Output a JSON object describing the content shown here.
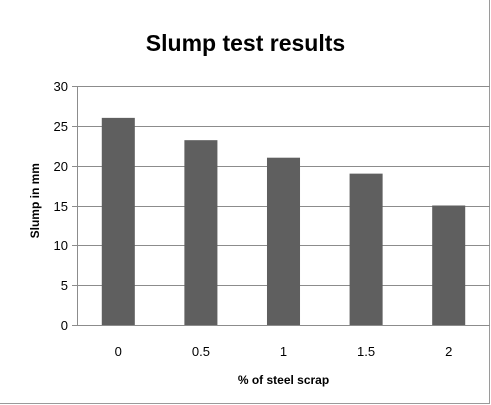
{
  "chart_data": {
    "type": "bar",
    "title": "Slump test results",
    "xlabel": "% of steel scrap",
    "ylabel": "Slump in mm",
    "categories": [
      "0",
      "0.5",
      "1",
      "1.5",
      "2"
    ],
    "values": [
      26,
      23.2,
      21,
      19,
      15
    ],
    "ylim": [
      0,
      30
    ],
    "yticks": [
      0,
      5,
      10,
      15,
      20,
      25,
      30
    ],
    "grid": true,
    "bar_color": "#5f5f5f",
    "grid_color": "#8c8c8c"
  }
}
